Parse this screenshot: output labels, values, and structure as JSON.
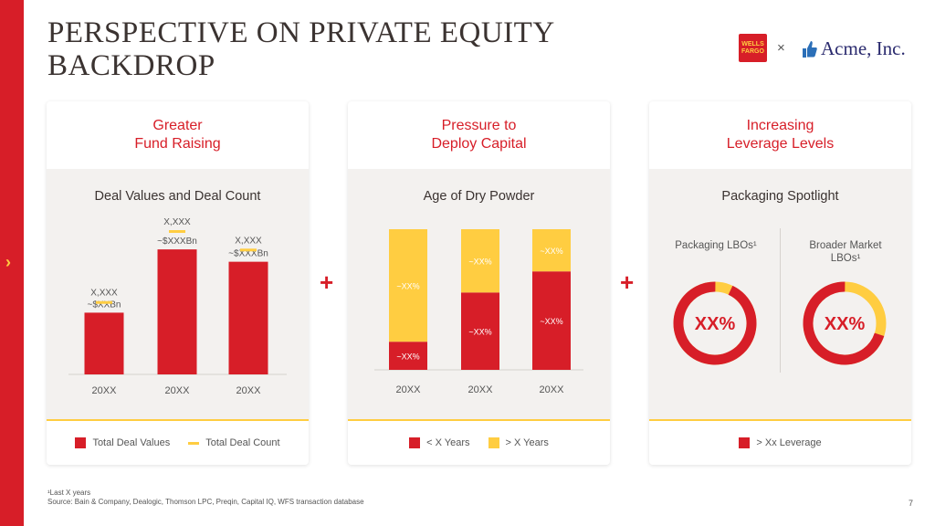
{
  "title": "PERSPECTIVE ON PRIVATE EQUITY BACKDROP",
  "logos": {
    "wf": "WELLS FARGO",
    "times": "×",
    "acme": "Acme, Inc."
  },
  "plus": "+",
  "colors": {
    "red": "#d71e28",
    "yellow": "#ffcd41",
    "text": "#3b3331",
    "panel": "#f3f1ef"
  },
  "cards": [
    {
      "header": "Greater\nFund Raising",
      "header_l1": "Greater",
      "header_l2": "Fund Raising",
      "subtitle": "Deal Values and Deal Count",
      "legend": [
        "Total Deal Values",
        "Total Deal Count"
      ]
    },
    {
      "header_l1": "Pressure to",
      "header_l2": "Deploy Capital",
      "subtitle": "Age of Dry Powder",
      "legend": [
        "< X Years",
        "> X Years"
      ]
    },
    {
      "header_l1": "Increasing",
      "header_l2": "Leverage Levels",
      "subtitle": "Packaging Spotlight",
      "legend": [
        "> Xx Leverage"
      ]
    }
  ],
  "chart_data": [
    {
      "type": "bar",
      "title": "Deal Values and Deal Count",
      "categories": [
        "20XX",
        "20XX",
        "20XX"
      ],
      "series": [
        {
          "name": "Total Deal Values",
          "values": [
            40,
            81,
            73
          ],
          "labels": [
            "~$XXBn",
            "~$XXXBn",
            "~$XXXBn"
          ]
        },
        {
          "name": "Total Deal Count",
          "values": [
            54,
            100,
            88
          ],
          "labels": [
            "X,XXX",
            "X,XXX",
            "X,XXX"
          ]
        }
      ],
      "ylim": [
        0,
        100
      ]
    },
    {
      "type": "bar",
      "title": "Age of Dry Powder",
      "stacked": true,
      "categories": [
        "20XX",
        "20XX",
        "20XX"
      ],
      "series": [
        {
          "name": "< X Years",
          "values": [
            20,
            55,
            70
          ],
          "labels": [
            "~XX%",
            "~XX%",
            "~XX%"
          ]
        },
        {
          "name": "> X Years",
          "values": [
            80,
            45,
            30
          ],
          "labels": [
            "~XX%",
            "~XX%",
            "~XX%"
          ]
        }
      ],
      "ylim": [
        0,
        100
      ]
    },
    {
      "type": "pie",
      "title": "Packaging Spotlight",
      "donuts": [
        {
          "label": "Packaging LBOs¹",
          "center": "XX%",
          "share": 0.93
        },
        {
          "label": "Broader Market LBOs¹",
          "center": "XX%",
          "share": 0.7
        }
      ],
      "series_name": "> Xx Leverage"
    }
  ],
  "footnote": {
    "line1": "¹Last X years",
    "line2": "Source: Bain & Company, Dealogic, Thomson LPC, Preqin, Capital IQ, WFS transaction database"
  },
  "page_number": "7"
}
